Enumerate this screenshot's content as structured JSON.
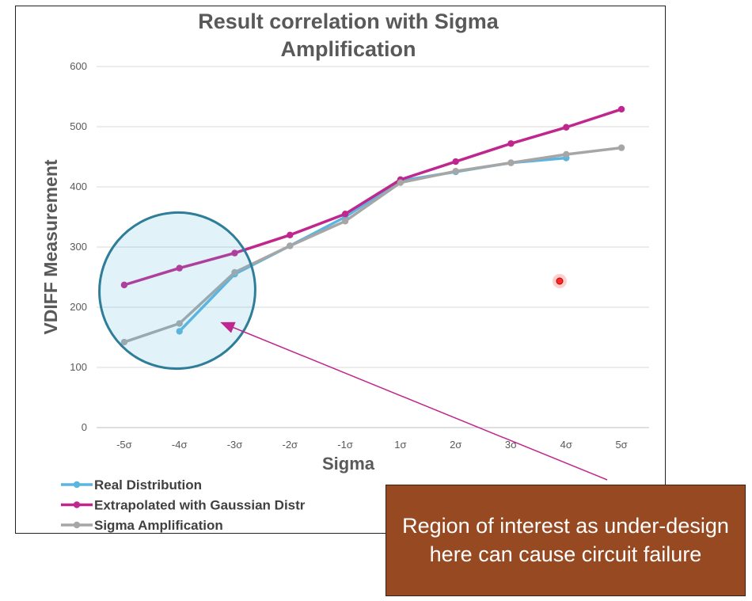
{
  "chart_data": {
    "type": "line",
    "title_lines": [
      "Result correlation with Sigma",
      "Amplification"
    ],
    "xlabel": "Sigma",
    "ylabel": "VDIFF Measurement",
    "categories": [
      "-5σ",
      "-4σ",
      "-3σ",
      "-2σ",
      "-1σ",
      "1σ",
      "2σ",
      "3σ",
      "4σ",
      "5σ"
    ],
    "ylim": [
      0,
      600
    ],
    "yticks": [
      0,
      100,
      200,
      300,
      400,
      500,
      600
    ],
    "grid": "horizontal",
    "legend_position": "bottom-left",
    "series": [
      {
        "name": "Real Distribution",
        "color": "#5bb5e0",
        "values": [
          null,
          160,
          255,
          302,
          350,
          410,
          425,
          440,
          448,
          null
        ]
      },
      {
        "name": "Extrapolated with Gaussian Distr",
        "color": "#c0278e",
        "values": [
          237,
          265,
          290,
          320,
          355,
          412,
          442,
          472,
          499,
          529
        ]
      },
      {
        "name": "Sigma Amplification",
        "color": "#a6a6a6",
        "values": [
          142,
          173,
          258,
          302,
          343,
          407,
          426,
          440,
          454,
          465
        ]
      }
    ],
    "annotation": {
      "text": "Region of interest as under-design here can cause circuit failure",
      "shape": "ellipse",
      "color": "#2e7d99",
      "arrow_color": "#c0278e"
    }
  }
}
